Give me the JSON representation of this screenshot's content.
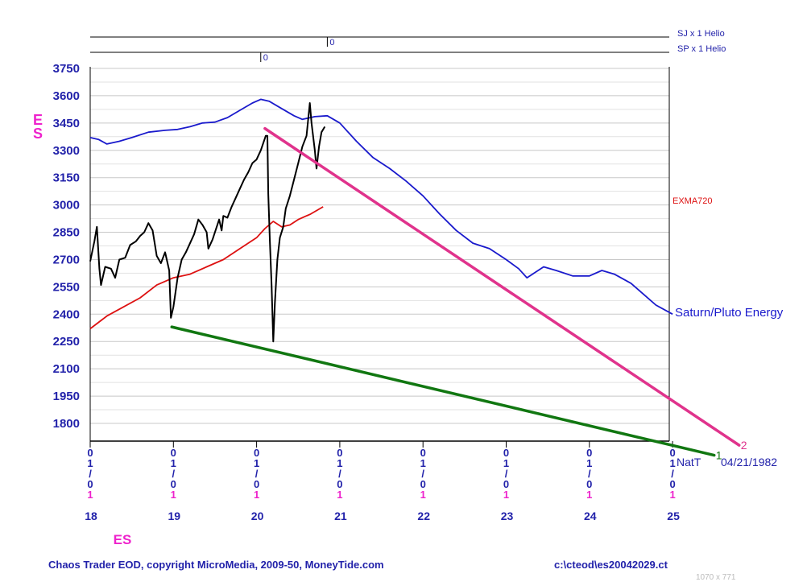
{
  "chart_data": {
    "type": "line",
    "symbol": "ES",
    "ylabel": "ES",
    "xlabel": "ES",
    "ylim": [
      1800,
      3750
    ],
    "yticks": [
      3750,
      3600,
      3450,
      3300,
      3150,
      3000,
      2850,
      2700,
      2550,
      2400,
      2250,
      2100,
      1950,
      1800
    ],
    "x_ticks": [
      {
        "year": "18",
        "date": "01/01"
      },
      {
        "year": "19",
        "date": "01/01"
      },
      {
        "year": "20",
        "date": "01/01"
      },
      {
        "year": "21",
        "date": "01/01"
      },
      {
        "year": "22",
        "date": "01/01"
      },
      {
        "year": "23",
        "date": "01/01"
      },
      {
        "year": "24",
        "date": "01/01"
      },
      {
        "year": "25",
        "date": "01/01"
      }
    ],
    "header_lines": [
      {
        "label": "SJ x 1 Helio",
        "marker": "0",
        "marker_year": 2020.85
      },
      {
        "label": "SP x 1 Helio",
        "marker": "0",
        "marker_year": 2020.05
      }
    ],
    "series": [
      {
        "name": "Saturn/Pluto Energy",
        "color": "#1a1acc",
        "points": [
          [
            2018.0,
            3370
          ],
          [
            2018.1,
            3360
          ],
          [
            2018.2,
            3335
          ],
          [
            2018.35,
            3350
          ],
          [
            2018.5,
            3370
          ],
          [
            2018.7,
            3400
          ],
          [
            2018.9,
            3410
          ],
          [
            2019.05,
            3415
          ],
          [
            2019.2,
            3430
          ],
          [
            2019.35,
            3450
          ],
          [
            2019.5,
            3455
          ],
          [
            2019.65,
            3480
          ],
          [
            2019.8,
            3520
          ],
          [
            2019.95,
            3560
          ],
          [
            2020.05,
            3580
          ],
          [
            2020.15,
            3570
          ],
          [
            2020.3,
            3530
          ],
          [
            2020.45,
            3490
          ],
          [
            2020.55,
            3470
          ],
          [
            2020.7,
            3485
          ],
          [
            2020.85,
            3490
          ],
          [
            2021.0,
            3450
          ],
          [
            2021.2,
            3350
          ],
          [
            2021.4,
            3260
          ],
          [
            2021.6,
            3200
          ],
          [
            2021.8,
            3130
          ],
          [
            2022.0,
            3050
          ],
          [
            2022.2,
            2950
          ],
          [
            2022.4,
            2860
          ],
          [
            2022.6,
            2790
          ],
          [
            2022.8,
            2760
          ],
          [
            2023.0,
            2700
          ],
          [
            2023.15,
            2650
          ],
          [
            2023.25,
            2600
          ],
          [
            2023.45,
            2660
          ],
          [
            2023.6,
            2640
          ],
          [
            2023.8,
            2610
          ],
          [
            2024.0,
            2610
          ],
          [
            2024.15,
            2640
          ],
          [
            2024.3,
            2620
          ],
          [
            2024.5,
            2570
          ],
          [
            2024.65,
            2510
          ],
          [
            2024.8,
            2450
          ],
          [
            2025.0,
            2400
          ]
        ]
      },
      {
        "name": "EXMA720",
        "color": "#dd1111",
        "points": [
          [
            2018.0,
            2320
          ],
          [
            2018.2,
            2390
          ],
          [
            2018.4,
            2440
          ],
          [
            2018.6,
            2490
          ],
          [
            2018.8,
            2560
          ],
          [
            2019.0,
            2600
          ],
          [
            2019.2,
            2620
          ],
          [
            2019.4,
            2660
          ],
          [
            2019.6,
            2700
          ],
          [
            2019.8,
            2760
          ],
          [
            2020.0,
            2820
          ],
          [
            2020.1,
            2870
          ],
          [
            2020.2,
            2910
          ],
          [
            2020.3,
            2880
          ],
          [
            2020.4,
            2890
          ],
          [
            2020.5,
            2920
          ],
          [
            2020.65,
            2950
          ],
          [
            2020.8,
            2990
          ]
        ]
      },
      {
        "name": "ES",
        "color": "#000000",
        "points": [
          [
            2018.0,
            2690
          ],
          [
            2018.05,
            2800
          ],
          [
            2018.08,
            2880
          ],
          [
            2018.11,
            2650
          ],
          [
            2018.13,
            2560
          ],
          [
            2018.18,
            2660
          ],
          [
            2018.25,
            2650
          ],
          [
            2018.3,
            2600
          ],
          [
            2018.35,
            2700
          ],
          [
            2018.42,
            2710
          ],
          [
            2018.48,
            2780
          ],
          [
            2018.55,
            2800
          ],
          [
            2018.6,
            2830
          ],
          [
            2018.65,
            2850
          ],
          [
            2018.7,
            2900
          ],
          [
            2018.75,
            2860
          ],
          [
            2018.8,
            2720
          ],
          [
            2018.85,
            2680
          ],
          [
            2018.9,
            2740
          ],
          [
            2018.95,
            2640
          ],
          [
            2018.97,
            2380
          ],
          [
            2019.0,
            2440
          ],
          [
            2019.05,
            2600
          ],
          [
            2019.1,
            2700
          ],
          [
            2019.15,
            2740
          ],
          [
            2019.2,
            2790
          ],
          [
            2019.25,
            2840
          ],
          [
            2019.3,
            2920
          ],
          [
            2019.35,
            2890
          ],
          [
            2019.4,
            2850
          ],
          [
            2019.42,
            2760
          ],
          [
            2019.47,
            2810
          ],
          [
            2019.55,
            2920
          ],
          [
            2019.58,
            2860
          ],
          [
            2019.6,
            2940
          ],
          [
            2019.65,
            2930
          ],
          [
            2019.7,
            2990
          ],
          [
            2019.75,
            3040
          ],
          [
            2019.8,
            3090
          ],
          [
            2019.85,
            3140
          ],
          [
            2019.9,
            3180
          ],
          [
            2019.95,
            3230
          ],
          [
            2020.0,
            3250
          ],
          [
            2020.05,
            3300
          ],
          [
            2020.08,
            3340
          ],
          [
            2020.11,
            3380
          ],
          [
            2020.13,
            3380
          ],
          [
            2020.14,
            3060
          ],
          [
            2020.16,
            2800
          ],
          [
            2020.18,
            2560
          ],
          [
            2020.2,
            2250
          ],
          [
            2020.22,
            2460
          ],
          [
            2020.25,
            2700
          ],
          [
            2020.28,
            2820
          ],
          [
            2020.32,
            2880
          ],
          [
            2020.35,
            2980
          ],
          [
            2020.4,
            3050
          ],
          [
            2020.45,
            3140
          ],
          [
            2020.5,
            3230
          ],
          [
            2020.55,
            3320
          ],
          [
            2020.6,
            3380
          ],
          [
            2020.64,
            3560
          ],
          [
            2020.66,
            3450
          ],
          [
            2020.7,
            3300
          ],
          [
            2020.72,
            3200
          ],
          [
            2020.75,
            3320
          ],
          [
            2020.78,
            3400
          ],
          [
            2020.82,
            3430
          ]
        ]
      }
    ],
    "trendlines": [
      {
        "label": "1",
        "color": "#117711",
        "from": [
          2018.98,
          2330
        ],
        "to": [
          2025.5,
          1625
        ]
      },
      {
        "label": "2",
        "color": "#e0338c",
        "from": [
          2020.1,
          3420
        ],
        "to": [
          2025.8,
          1680
        ]
      }
    ],
    "annotations": {
      "saturn_label": "Saturn/Pluto Energy",
      "exma_label": "EXMA720",
      "natt_label": "NatT",
      "natt_date": "04/21/1982"
    }
  },
  "footer": {
    "left": "Chaos Trader EOD, copyright MicroMedia, 2009-50, MoneyTide.com",
    "right": "c:\\cteod\\es20042029.ct",
    "dims": "1070 x 771"
  }
}
